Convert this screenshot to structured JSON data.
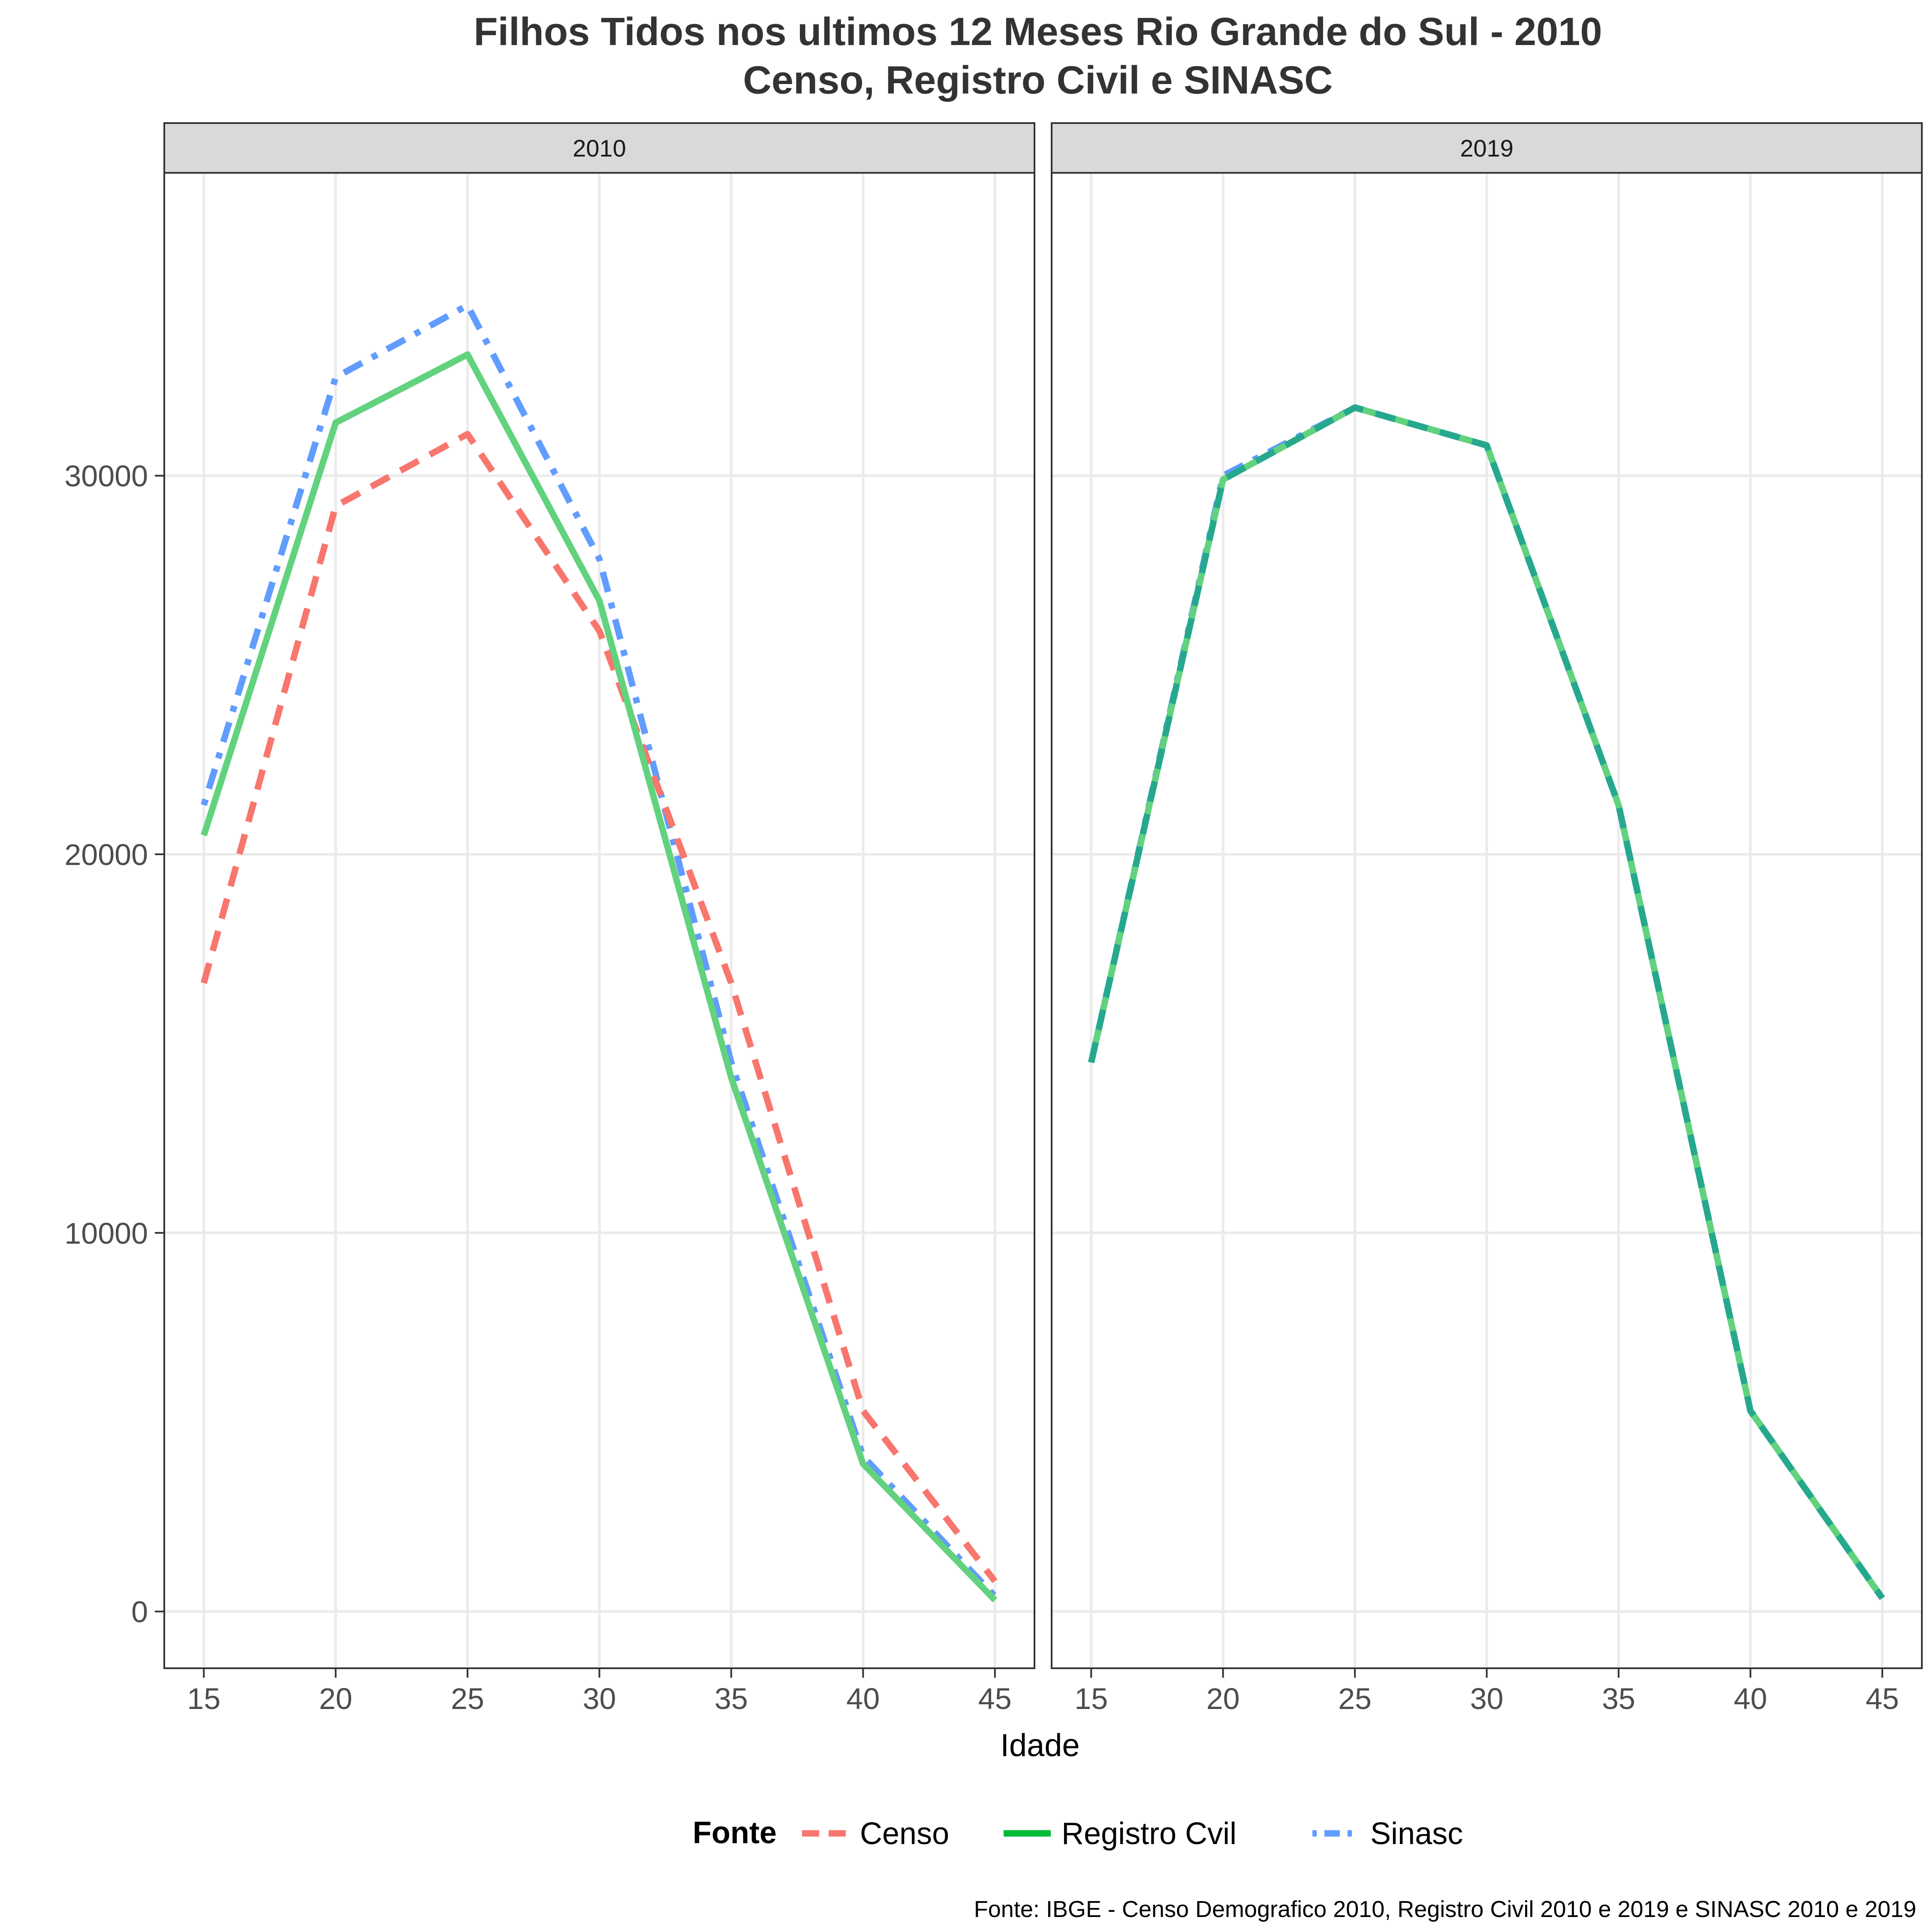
{
  "chart_data": {
    "type": "line",
    "title_line1": "Filhos Tidos nos ultimos 12 Meses Rio Grande do Sul - 2010",
    "title_line2": "Censo, Registro Civil e SINASC",
    "xlabel": "Idade",
    "ylabel": "",
    "caption": "Fonte: IBGE - Censo Demografico 2010, Registro Civil 2010 e 2019 e SINASC 2010 e 2019",
    "x_ticks": [
      15,
      20,
      25,
      30,
      35,
      40,
      45
    ],
    "y_ticks": [
      0,
      10000,
      20000,
      30000
    ],
    "xlim": [
      13.5,
      46.5
    ],
    "ylim": [
      -1500,
      38000
    ],
    "grid": true,
    "legend": {
      "title": "Fonte",
      "position": "bottom",
      "entries": [
        {
          "label": "Censo",
          "color": "#F8766D",
          "dash": "dashed"
        },
        {
          "label": "Registro Cvil",
          "color": "#00BA38",
          "dash": "solid"
        },
        {
          "label": "Sinasc",
          "color": "#619CFF",
          "dash": "dotdash"
        }
      ]
    },
    "panels": [
      {
        "label": "2010",
        "series": [
          {
            "name": "Sinasc",
            "color": "#619CFF",
            "dash": "dotdash",
            "x": [
              15,
              20,
              25,
              30,
              35,
              40,
              45
            ],
            "y": [
              21300,
              32600,
              34500,
              27800,
              14500,
              4100,
              400
            ]
          },
          {
            "name": "Censo",
            "color": "#F8766D",
            "dash": "dashed",
            "x": [
              15,
              20,
              25,
              30,
              35,
              40,
              45
            ],
            "y": [
              16600,
              29200,
              31100,
              25900,
              16600,
              5300,
              800
            ]
          },
          {
            "name": "Registro Cvil",
            "color": "#62D27E",
            "dash": "solid",
            "x": [
              15,
              20,
              25,
              30,
              35,
              40,
              45
            ],
            "y": [
              20500,
              31400,
              33200,
              26700,
              14100,
              3900,
              300
            ]
          }
        ]
      },
      {
        "label": "2019",
        "series": [
          {
            "name": "Sinasc",
            "color": "#619CFF",
            "dash": "dotdash",
            "x": [
              15,
              20,
              25,
              30,
              35,
              40,
              45
            ],
            "y": [
              14500,
              30000,
              31800,
              30800,
              21300,
              5300,
              350
            ]
          },
          {
            "name": "Registro Cvil",
            "color": "#62D27E",
            "dash": "solid",
            "x": [
              15,
              20,
              25,
              30,
              35,
              40,
              45
            ],
            "y": [
              14500,
              29900,
              31800,
              30800,
              21300,
              5300,
              350
            ]
          },
          {
            "name": "Censo",
            "color": "#26A88E",
            "dash": "dashed",
            "x": [
              15,
              20,
              25,
              30,
              35,
              40,
              45
            ],
            "y": [
              14500,
              29900,
              31800,
              30800,
              21300,
              5300,
              350
            ]
          }
        ]
      }
    ]
  }
}
